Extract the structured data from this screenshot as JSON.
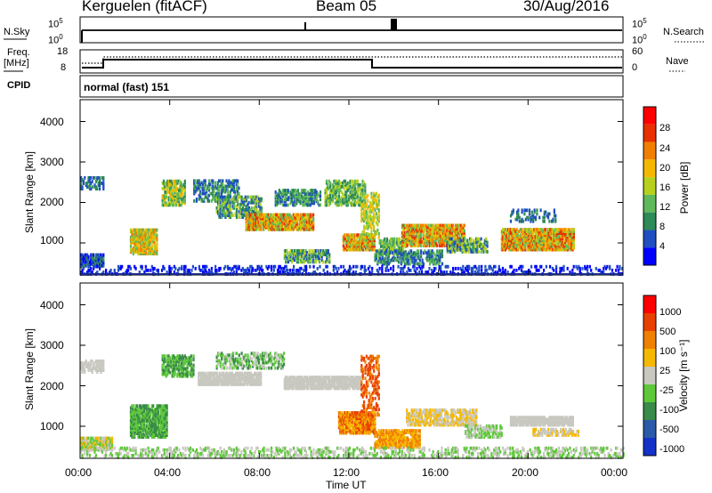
{
  "header": {
    "station": "Kerguelen (fitACF)",
    "beam": "Beam 05",
    "date": "30/Aug/2016"
  },
  "top_panels": {
    "nsky_label": "N.Sky",
    "nsky_ticks": [
      "10^5",
      "10^0"
    ],
    "nsearch_label": "N.Search",
    "nsearch_ticks": [
      "10^5",
      "10^0"
    ],
    "freq_label": "Freq.",
    "freq_unit": "[MHz]",
    "freq_ticks": [
      "18",
      "8"
    ],
    "nave_label": "Nave",
    "nave_ticks": [
      "60",
      "0"
    ],
    "cpid_label": "CPID",
    "cpid_value": "normal (fast) 151"
  },
  "chart_data": [
    {
      "type": "heatmap",
      "name": "power",
      "ylabel": "Slant Range [km]",
      "colorbar_label": "Power [dB]",
      "ylim": [
        180,
        4500
      ],
      "xlim": [
        0,
        24
      ],
      "y_ticks": [
        "1000",
        "2000",
        "3000",
        "4000"
      ],
      "colorbar_ticks": [
        "4",
        "8",
        "12",
        "16",
        "20",
        "24",
        "28"
      ],
      "colorbar_colors": [
        "#0000ff",
        "#1f4fc0",
        "#2e8a57",
        "#5fb85a",
        "#b7d01e",
        "#f5b800",
        "#f07f00",
        "#e83000",
        "#ff0000"
      ]
    },
    {
      "type": "heatmap",
      "name": "velocity",
      "ylabel": "Slant Range [km]",
      "colorbar_label": "Velocity [m s⁻¹]",
      "ylim": [
        180,
        4500
      ],
      "xlim": [
        0,
        24
      ],
      "y_ticks": [
        "1000",
        "2000",
        "3000",
        "4000"
      ],
      "colorbar_ticks": [
        "1000",
        "500",
        "100",
        "25",
        "-25",
        "-100",
        "-500",
        "-1000"
      ],
      "colorbar_colors": [
        "#1432c8",
        "#2b5aa8",
        "#3a8a4a",
        "#5ec83a",
        "#c8c8c0",
        "#f5b800",
        "#f08000",
        "#e84000",
        "#ff0000"
      ],
      "xlabel": "Time UT",
      "x_ticks": [
        "00:00",
        "04:00",
        "08:00",
        "12:00",
        "16:00",
        "20:00",
        "00:00"
      ]
    }
  ]
}
